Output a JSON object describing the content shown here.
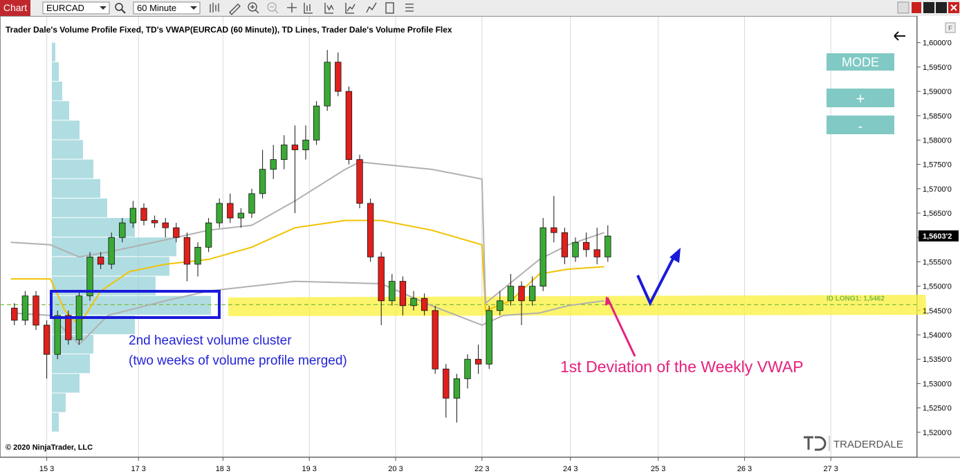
{
  "ui": {
    "window_tab": "Chart",
    "instrument": "EURCAD",
    "period": "60 Minute",
    "buttons": [
      "MODE",
      "+",
      "-"
    ],
    "copyright": "© 2020 NinjaTrader, LLC",
    "logo": "TRADERDALE"
  },
  "chart_data": {
    "type": "candlestick",
    "title": "Trader Dale's Volume Profile Fixed, TD's VWAP(EURCAD (60 Minute)), TD Lines, Trader Dale's Volume Profile Flex",
    "x": [
      4,
      7,
      10,
      13,
      16,
      19,
      22,
      25,
      28,
      31,
      34,
      37,
      40,
      43,
      46,
      49,
      52,
      55,
      58,
      61,
      64,
      67,
      70,
      73,
      76,
      79,
      82,
      85,
      88,
      91,
      94,
      97,
      100,
      103,
      106,
      109,
      112,
      115,
      118,
      121,
      124,
      127,
      130,
      133,
      136,
      139,
      142,
      145,
      148,
      151,
      154,
      157,
      160,
      163,
      166,
      169
    ],
    "open": [
      1.5455,
      1.543,
      1.548,
      1.542,
      1.536,
      1.544,
      1.539,
      1.548,
      1.556,
      1.5545,
      1.56,
      1.563,
      1.566,
      1.5635,
      1.563,
      1.562,
      1.56,
      1.5545,
      1.558,
      1.563,
      1.567,
      1.564,
      1.565,
      1.569,
      1.574,
      1.576,
      1.579,
      1.578,
      1.58,
      1.587,
      1.596,
      1.59,
      1.576,
      1.567,
      1.556,
      1.547,
      1.551,
      1.546,
      1.5475,
      1.545,
      1.533,
      1.527,
      1.531,
      1.535,
      1.534,
      1.545,
      1.547,
      1.55,
      1.547,
      1.55,
      1.562,
      1.561,
      1.556,
      1.559,
      1.5575,
      1.556
    ],
    "high": [
      1.5465,
      1.549,
      1.549,
      1.543,
      1.545,
      1.545,
      1.549,
      1.557,
      1.557,
      1.561,
      1.564,
      1.5675,
      1.567,
      1.5645,
      1.564,
      1.563,
      1.561,
      1.559,
      1.564,
      1.568,
      1.569,
      1.566,
      1.57,
      1.578,
      1.579,
      1.581,
      1.583,
      1.583,
      1.588,
      1.5985,
      1.598,
      1.591,
      1.577,
      1.568,
      1.557,
      1.5525,
      1.552,
      1.549,
      1.5485,
      1.546,
      1.534,
      1.532,
      1.536,
      1.538,
      1.546,
      1.549,
      1.5525,
      1.551,
      1.552,
      1.564,
      1.5685,
      1.562,
      1.56,
      1.561,
      1.562,
      1.5625
    ],
    "low": [
      1.542,
      1.542,
      1.541,
      1.531,
      1.535,
      1.538,
      1.538,
      1.547,
      1.5535,
      1.5535,
      1.559,
      1.562,
      1.5625,
      1.562,
      1.56,
      1.559,
      1.551,
      1.552,
      1.557,
      1.562,
      1.563,
      1.562,
      1.564,
      1.568,
      1.572,
      1.574,
      1.565,
      1.576,
      1.579,
      1.586,
      1.589,
      1.575,
      1.566,
      1.555,
      1.542,
      1.546,
      1.544,
      1.545,
      1.544,
      1.532,
      1.523,
      1.522,
      1.529,
      1.532,
      1.533,
      1.544,
      1.546,
      1.542,
      1.546,
      1.549,
      1.559,
      1.5545,
      1.555,
      1.556,
      1.5545,
      1.555
    ],
    "close": [
      1.543,
      1.548,
      1.542,
      1.536,
      1.544,
      1.539,
      1.548,
      1.556,
      1.5545,
      1.56,
      1.563,
      1.566,
      1.5635,
      1.563,
      1.562,
      1.56,
      1.5545,
      1.558,
      1.563,
      1.567,
      1.564,
      1.565,
      1.569,
      1.574,
      1.576,
      1.579,
      1.578,
      1.58,
      1.587,
      1.596,
      1.59,
      1.576,
      1.567,
      1.556,
      1.547,
      1.551,
      1.546,
      1.5475,
      1.545,
      1.533,
      1.527,
      1.531,
      1.535,
      1.534,
      1.545,
      1.547,
      1.55,
      1.547,
      1.55,
      1.562,
      1.561,
      1.556,
      1.559,
      1.5575,
      1.556,
      1.5603
    ],
    "up_color": "#3aaa35",
    "down_color": "#e0201c",
    "lines": [
      {
        "color": "#f2c200",
        "x": [
          3,
          14,
          18,
          22,
          28,
          36,
          46,
          58,
          70,
          82,
          96,
          106,
          120,
          134,
          135,
          142,
          150,
          158,
          168
        ],
        "values": [
          1.5515,
          1.5515,
          1.545,
          1.542,
          1.549,
          1.553,
          1.5545,
          1.5555,
          1.558,
          1.562,
          1.5635,
          1.5635,
          1.5615,
          1.5585,
          1.545,
          1.547,
          1.5525,
          1.5535,
          1.554
        ]
      },
      {
        "color": "#b0b0b0",
        "x": [
          3,
          14,
          22,
          30,
          46,
          58,
          70,
          82,
          96,
          100,
          120,
          134,
          135,
          150,
          158,
          168
        ],
        "values": [
          1.559,
          1.5585,
          1.556,
          1.557,
          1.5595,
          1.5615,
          1.5625,
          1.5675,
          1.574,
          1.5755,
          1.574,
          1.572,
          1.5465,
          1.5555,
          1.5585,
          1.561
        ]
      },
      {
        "color": "#b0b0b0",
        "x": [
          3,
          14,
          22,
          30,
          46,
          58,
          82,
          106,
          120,
          134,
          140,
          150,
          158,
          168
        ],
        "values": [
          1.5445,
          1.544,
          1.538,
          1.544,
          1.547,
          1.549,
          1.551,
          1.5505,
          1.546,
          1.542,
          1.544,
          1.5445,
          1.546,
          1.547
        ]
      }
    ],
    "volume_profile": {
      "color": "#8fcfd6",
      "prices": [
        1.522,
        1.526,
        1.53,
        1.534,
        1.538,
        1.542,
        1.546,
        1.55,
        1.554,
        1.558,
        1.562,
        1.566,
        1.57,
        1.574,
        1.578,
        1.582,
        1.586,
        1.59,
        1.594,
        1.598
      ],
      "volumes": [
        10,
        20,
        40,
        55,
        60,
        120,
        230,
        150,
        170,
        180,
        120,
        80,
        70,
        60,
        45,
        40,
        25,
        15,
        10,
        5
      ]
    },
    "ylim": [
      1.515,
      1.6045
    ],
    "yticks": [
      {
        "value": 1.6,
        "label": "1,6000'0"
      },
      {
        "value": 1.595,
        "label": "1,5950'0"
      },
      {
        "value": 1.59,
        "label": "1,5900'0"
      },
      {
        "value": 1.585,
        "label": "1,5850'0"
      },
      {
        "value": 1.58,
        "label": "1,5800'0"
      },
      {
        "value": 1.575,
        "label": "1,5750'0"
      },
      {
        "value": 1.57,
        "label": "1,5700'0"
      },
      {
        "value": 1.565,
        "label": "1,5650'0"
      },
      {
        "value": 1.56,
        "label": "1,5600'0"
      },
      {
        "value": 1.555,
        "label": "1,5550'0"
      },
      {
        "value": 1.55,
        "label": "1,5500'0"
      },
      {
        "value": 1.545,
        "label": "1,5450'0"
      },
      {
        "value": 1.54,
        "label": "1,5400'0"
      },
      {
        "value": 1.535,
        "label": "1,5350'0"
      },
      {
        "value": 1.53,
        "label": "1,5300'0"
      },
      {
        "value": 1.525,
        "label": "1,5250'0"
      },
      {
        "value": 1.52,
        "label": "1,5200'0"
      }
    ],
    "xlim": [
      0,
      254.8
    ],
    "xticks": [
      {
        "value": 13,
        "label": "15 3"
      },
      {
        "value": 38.5,
        "label": "17 3"
      },
      {
        "value": 62,
        "label": "18 3"
      },
      {
        "value": 86,
        "label": "19 3"
      },
      {
        "value": 110,
        "label": "20 3"
      },
      {
        "value": 134,
        "label": "22 3"
      },
      {
        "value": 158.6,
        "label": "24 3"
      },
      {
        "value": 183,
        "label": "25 3"
      },
      {
        "value": 207,
        "label": "26 3"
      },
      {
        "value": 231,
        "label": "27 3"
      }
    ],
    "grid": true,
    "level": {
      "value": 1.5462,
      "label": "ID LONG1: 1,5462",
      "color": "#7dbb3c"
    },
    "last_price": {
      "value": 1.56032,
      "label": "1,5603'2"
    },
    "annotations": [
      "2nd heaviest volume cluster",
      "(two weeks of volume profile merged)",
      "1st Deviation of the Weekly VWAP"
    ]
  }
}
